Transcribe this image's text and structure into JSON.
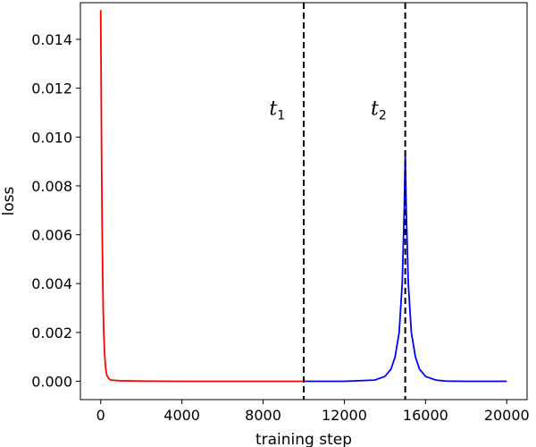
{
  "chart_data": {
    "type": "line",
    "xlabel": "training step",
    "ylabel": "loss",
    "xlim": [
      -1000,
      21000
    ],
    "ylim": [
      -0.00075,
      0.0155
    ],
    "xticks": [
      0,
      4000,
      8000,
      12000,
      16000,
      20000
    ],
    "xtick_labels": [
      "0",
      "4000",
      "8000",
      "12000",
      "16000",
      "20000"
    ],
    "yticks": [
      0.0,
      0.002,
      0.004,
      0.006,
      0.008,
      0.01,
      0.012,
      0.014
    ],
    "ytick_labels": [
      "0.000",
      "0.002",
      "0.004",
      "0.006",
      "0.008",
      "0.010",
      "0.012",
      "0.014"
    ],
    "grid": false,
    "series": [
      {
        "color": "#ff0000",
        "x": [
          0,
          25,
          50,
          75,
          100,
          125,
          150,
          200,
          250,
          300,
          400,
          500,
          1000,
          2000,
          4000,
          6000,
          8000,
          10000
        ],
        "y": [
          0.0152,
          0.0118,
          0.0085,
          0.006,
          0.0042,
          0.0029,
          0.002,
          0.001,
          0.0005,
          0.00025,
          0.0001,
          5e-05,
          2e-05,
          1e-05,
          0.0,
          0.0,
          0.0,
          0.0
        ]
      },
      {
        "color": "#0000ff",
        "x": [
          10000,
          12000,
          13500,
          14000,
          14300,
          14500,
          14700,
          14850,
          14950,
          15000,
          15050,
          15150,
          15300,
          15500,
          15700,
          16000,
          16500,
          17000,
          18000,
          20000
        ],
        "y": [
          0.0,
          0.0,
          5e-05,
          0.0002,
          0.0005,
          0.001,
          0.002,
          0.004,
          0.007,
          0.0093,
          0.007,
          0.004,
          0.002,
          0.001,
          0.0005,
          0.0002,
          5e-05,
          1e-05,
          0.0,
          0.0
        ]
      }
    ],
    "vlines": [
      {
        "x": 10000,
        "style": "dashed",
        "color": "#000000"
      },
      {
        "x": 15000,
        "style": "dashed",
        "color": "#000000"
      }
    ],
    "annotations": [
      {
        "base": "t",
        "sub": "1",
        "x": 8300,
        "y": 0.0112
      },
      {
        "base": "t",
        "sub": "2",
        "x": 13300,
        "y": 0.0112
      }
    ]
  }
}
